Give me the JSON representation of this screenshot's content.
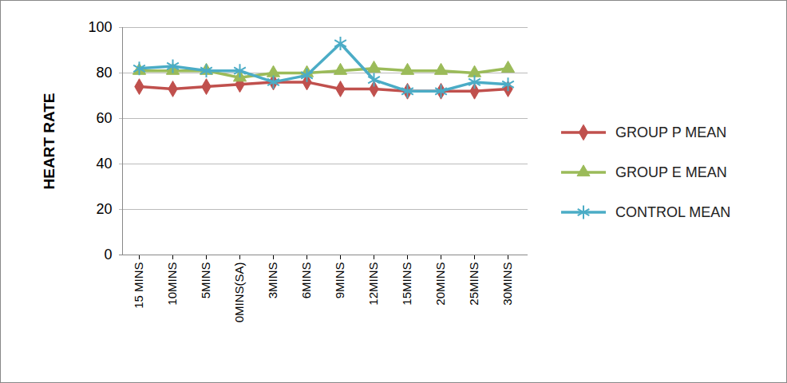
{
  "chart_data": {
    "type": "line",
    "y_label": "HEART RATE",
    "categories": [
      "15 MINS",
      "10MINS",
      "5MINS",
      "0MINS(SA)",
      "3MINS",
      "6MINS",
      "9MINS",
      "12MINS",
      "15MINS",
      "20MINS",
      "25MINS",
      "30MINS"
    ],
    "series": [
      {
        "name": "GROUP P MEAN",
        "color": "#c0504d",
        "marker": "diamond",
        "values": [
          74,
          73,
          74,
          75,
          76,
          76,
          73,
          73,
          72,
          72,
          72,
          73
        ]
      },
      {
        "name": "GROUP E MEAN",
        "color": "#9bbb59",
        "marker": "triangle",
        "values": [
          81,
          81,
          81,
          78,
          80,
          80,
          81,
          82,
          81,
          81,
          80,
          82
        ]
      },
      {
        "name": "CONTROL MEAN",
        "color": "#4bacc6",
        "marker": "asterisk",
        "values": [
          82,
          83,
          81,
          81,
          76,
          79,
          93,
          77,
          72,
          72,
          76,
          75
        ]
      }
    ],
    "ylim": [
      0,
      100
    ],
    "yticks": [
      0,
      20,
      40,
      60,
      80,
      100
    ],
    "grid": true,
    "legend": "right"
  }
}
